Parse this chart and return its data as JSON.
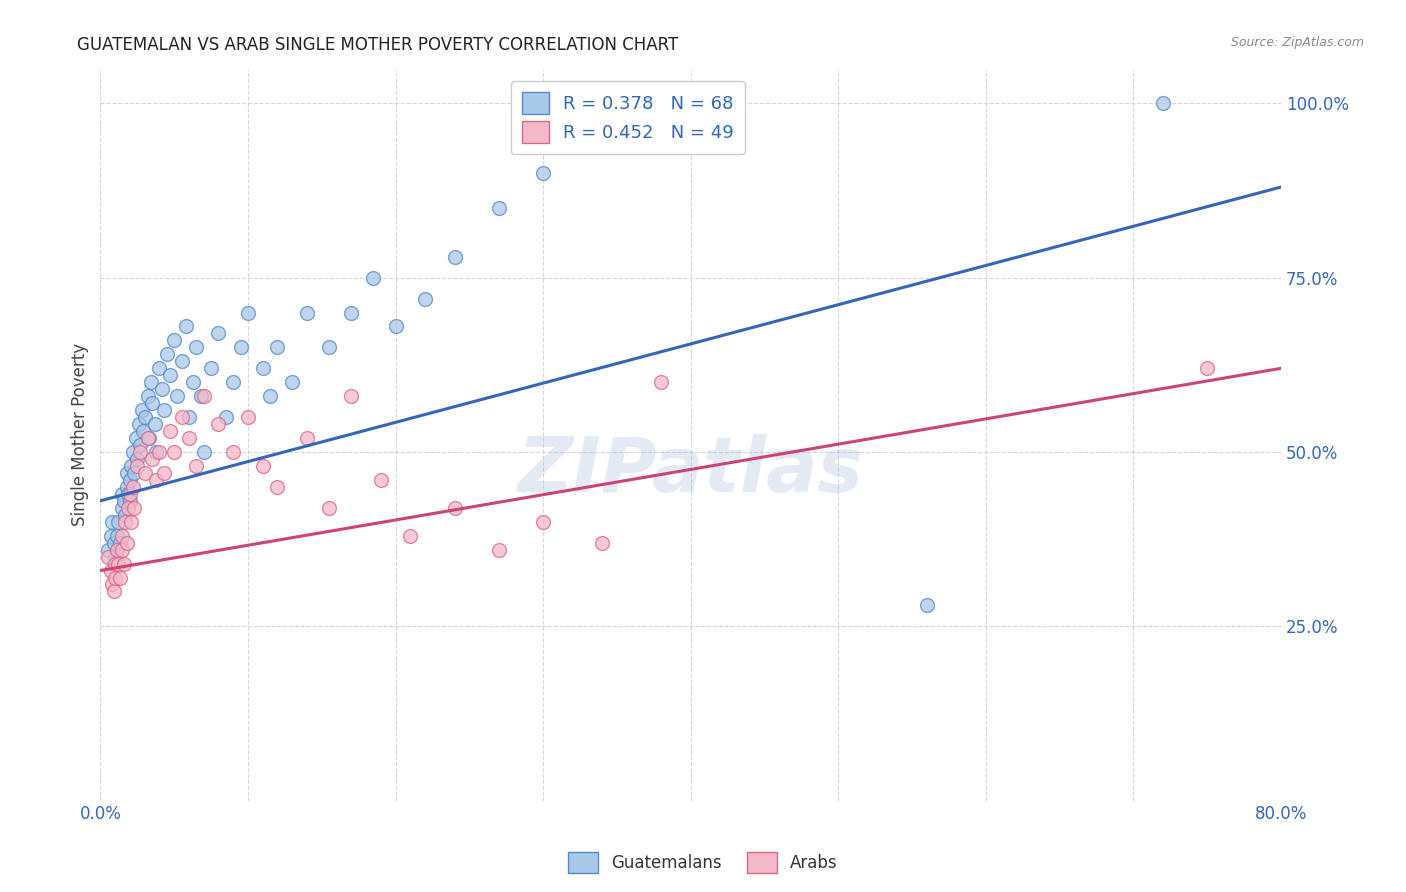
{
  "title": "GUATEMALAN VS ARAB SINGLE MOTHER POVERTY CORRELATION CHART",
  "source": "Source: ZipAtlas.com",
  "ylabel": "Single Mother Poverty",
  "x_min": 0.0,
  "x_max": 0.8,
  "y_min": 0.0,
  "y_max": 1.05,
  "blue_fill": "#a8c8e8",
  "pink_fill": "#f4b8c8",
  "blue_edge": "#5588cc",
  "pink_edge": "#dd6688",
  "blue_line": "#3366bb",
  "pink_line": "#cc4477",
  "legend_R_blue": "0.378",
  "legend_N_blue": "68",
  "legend_R_pink": "0.452",
  "legend_N_pink": "49",
  "watermark": "ZIPatlas",
  "blue_line_x0": 0.0,
  "blue_line_y0": 0.43,
  "blue_line_x1": 0.8,
  "blue_line_y1": 0.88,
  "pink_line_x0": 0.0,
  "pink_line_y0": 0.33,
  "pink_line_x1": 0.8,
  "pink_line_y1": 0.62,
  "guatemalans_x": [
    0.005,
    0.007,
    0.008,
    0.009,
    0.01,
    0.011,
    0.012,
    0.013,
    0.015,
    0.015,
    0.016,
    0.017,
    0.018,
    0.018,
    0.019,
    0.02,
    0.02,
    0.021,
    0.022,
    0.023,
    0.024,
    0.025,
    0.026,
    0.027,
    0.028,
    0.029,
    0.03,
    0.032,
    0.033,
    0.034,
    0.035,
    0.037,
    0.038,
    0.04,
    0.042,
    0.043,
    0.045,
    0.047,
    0.05,
    0.052,
    0.055,
    0.058,
    0.06,
    0.063,
    0.065,
    0.068,
    0.07,
    0.075,
    0.08,
    0.085,
    0.09,
    0.095,
    0.1,
    0.11,
    0.115,
    0.12,
    0.13,
    0.14,
    0.155,
    0.17,
    0.185,
    0.2,
    0.22,
    0.24,
    0.27,
    0.3,
    0.56,
    0.72
  ],
  "guatemalans_y": [
    0.36,
    0.38,
    0.4,
    0.37,
    0.35,
    0.38,
    0.4,
    0.37,
    0.42,
    0.44,
    0.43,
    0.41,
    0.45,
    0.47,
    0.44,
    0.46,
    0.43,
    0.48,
    0.5,
    0.47,
    0.52,
    0.49,
    0.54,
    0.51,
    0.56,
    0.53,
    0.55,
    0.58,
    0.52,
    0.6,
    0.57,
    0.54,
    0.5,
    0.62,
    0.59,
    0.56,
    0.64,
    0.61,
    0.66,
    0.58,
    0.63,
    0.68,
    0.55,
    0.6,
    0.65,
    0.58,
    0.5,
    0.62,
    0.67,
    0.55,
    0.6,
    0.65,
    0.7,
    0.62,
    0.58,
    0.65,
    0.6,
    0.7,
    0.65,
    0.7,
    0.75,
    0.68,
    0.72,
    0.78,
    0.85,
    0.9,
    0.28,
    1.0
  ],
  "arabs_x": [
    0.005,
    0.007,
    0.008,
    0.009,
    0.01,
    0.01,
    0.011,
    0.012,
    0.013,
    0.015,
    0.015,
    0.016,
    0.017,
    0.018,
    0.019,
    0.02,
    0.021,
    0.022,
    0.023,
    0.025,
    0.027,
    0.03,
    0.032,
    0.035,
    0.038,
    0.04,
    0.043,
    0.047,
    0.05,
    0.055,
    0.06,
    0.065,
    0.07,
    0.08,
    0.09,
    0.1,
    0.11,
    0.12,
    0.14,
    0.155,
    0.17,
    0.19,
    0.21,
    0.24,
    0.27,
    0.3,
    0.34,
    0.38,
    0.75
  ],
  "arabs_y": [
    0.35,
    0.33,
    0.31,
    0.3,
    0.32,
    0.34,
    0.36,
    0.34,
    0.32,
    0.38,
    0.36,
    0.34,
    0.4,
    0.37,
    0.42,
    0.44,
    0.4,
    0.45,
    0.42,
    0.48,
    0.5,
    0.47,
    0.52,
    0.49,
    0.46,
    0.5,
    0.47,
    0.53,
    0.5,
    0.55,
    0.52,
    0.48,
    0.58,
    0.54,
    0.5,
    0.55,
    0.48,
    0.45,
    0.52,
    0.42,
    0.58,
    0.46,
    0.38,
    0.42,
    0.36,
    0.4,
    0.37,
    0.6,
    0.62
  ]
}
